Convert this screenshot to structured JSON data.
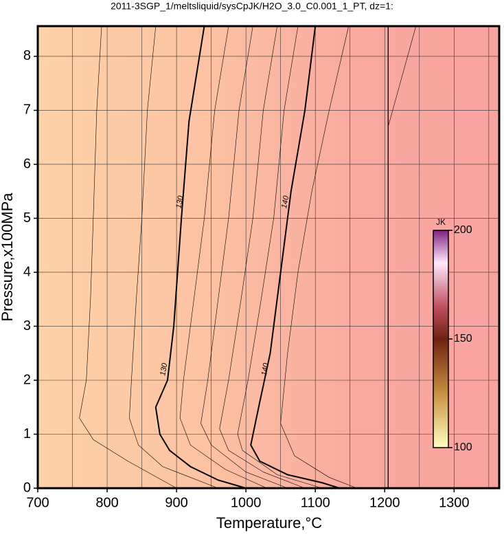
{
  "chart_data": {
    "type": "contour",
    "title": "2011-3SGP_1/meltsliquid/sysCpJK/H2O_3.0_C0.001_1_PT, dz=1:",
    "x_label": "Temperature,°C",
    "y_label": "Pressure,x100MPa",
    "xlim": [
      700,
      1365
    ],
    "ylim": [
      0,
      8.56
    ],
    "xticks": [
      700,
      800,
      900,
      1000,
      1100,
      1200,
      1300
    ],
    "yticks": [
      0,
      1,
      2,
      3,
      4,
      5,
      6,
      7,
      8
    ],
    "x_minor_grid": [
      750,
      850,
      950,
      1050,
      1150,
      1250,
      1350
    ],
    "grid": true,
    "contours": [
      {
        "level": 126,
        "width": 0.6,
        "x": [
          792,
          785,
          780,
          776,
          770,
          760,
          780,
          830,
          900
        ],
        "y": [
          8.56,
          7.0,
          5.0,
          3.5,
          2.0,
          1.3,
          0.9,
          0.5,
          0.0
        ]
      },
      {
        "level": 128,
        "width": 0.6,
        "x": [
          870,
          858,
          850,
          842,
          835,
          832,
          845,
          880,
          960
        ],
        "y": [
          8.56,
          7.0,
          5.0,
          3.5,
          2.0,
          1.3,
          0.8,
          0.4,
          0.0
        ]
      },
      {
        "level": 130,
        "width": 2,
        "x": [
          940,
          918,
          907,
          896,
          887,
          870,
          876,
          890,
          920,
          960,
          1000
        ],
        "y": [
          8.56,
          6.8,
          5.0,
          3.0,
          2.0,
          1.5,
          1.0,
          0.7,
          0.4,
          0.15,
          0.0
        ],
        "labels": [
          [
            905,
            5.3
          ],
          [
            882,
            2.2
          ]
        ]
      },
      {
        "level": 132,
        "width": 0.6,
        "x": [
          975,
          955,
          940,
          925,
          910,
          905,
          920,
          970,
          1030
        ],
        "y": [
          8.56,
          7.0,
          5.0,
          3.5,
          2.0,
          1.3,
          0.8,
          0.35,
          0.0
        ]
      },
      {
        "level": 134,
        "width": 0.6,
        "x": [
          1010,
          990,
          975,
          960,
          945,
          935,
          950,
          1000,
          1060
        ],
        "y": [
          8.56,
          7.0,
          5.0,
          3.5,
          2.0,
          1.2,
          0.8,
          0.3,
          0.0
        ]
      },
      {
        "level": 136,
        "width": 0.6,
        "x": [
          1045,
          1025,
          1010,
          993,
          975,
          962,
          975,
          1025,
          1085
        ],
        "y": [
          8.56,
          7.0,
          5.0,
          3.5,
          2.0,
          1.1,
          0.7,
          0.3,
          0.0
        ]
      },
      {
        "level": 138,
        "width": 0.6,
        "x": [
          1075,
          1055,
          1040,
          1022,
          1003,
          988,
          995,
          1045,
          1110
        ],
        "y": [
          8.56,
          7.0,
          5.0,
          3.5,
          2.0,
          1.0,
          0.7,
          0.25,
          0.0
        ]
      },
      {
        "level": 140,
        "width": 2,
        "x": [
          1100,
          1085,
          1065,
          1050,
          1035,
          1020,
          1007,
          1020,
          1060,
          1110,
          1135
        ],
        "y": [
          8.56,
          7.0,
          5.5,
          4.0,
          2.5,
          1.6,
          0.8,
          0.5,
          0.25,
          0.1,
          0.0
        ],
        "labels": [
          [
            1057,
            5.3
          ],
          [
            1028,
            2.2
          ]
        ]
      },
      {
        "level": 142,
        "width": 0.6,
        "x": [
          1148,
          1120,
          1095,
          1075,
          1060,
          1050,
          1070,
          1120,
          1160
        ],
        "y": [
          8.56,
          7.0,
          5.5,
          4.0,
          2.5,
          1.2,
          0.6,
          0.2,
          0.0
        ]
      },
      {
        "level": 144,
        "width": 1.4,
        "x": [
          1205,
          1205
        ],
        "y": [
          0.0,
          8.56
        ]
      },
      {
        "level": 146,
        "width": 0.6,
        "x": [
          1205,
          1245
        ],
        "y": [
          6.7,
          8.56
        ]
      }
    ],
    "colorbar": {
      "label": "JK",
      "lim": [
        100,
        200
      ],
      "ticks": [
        100,
        150,
        200
      ]
    }
  }
}
